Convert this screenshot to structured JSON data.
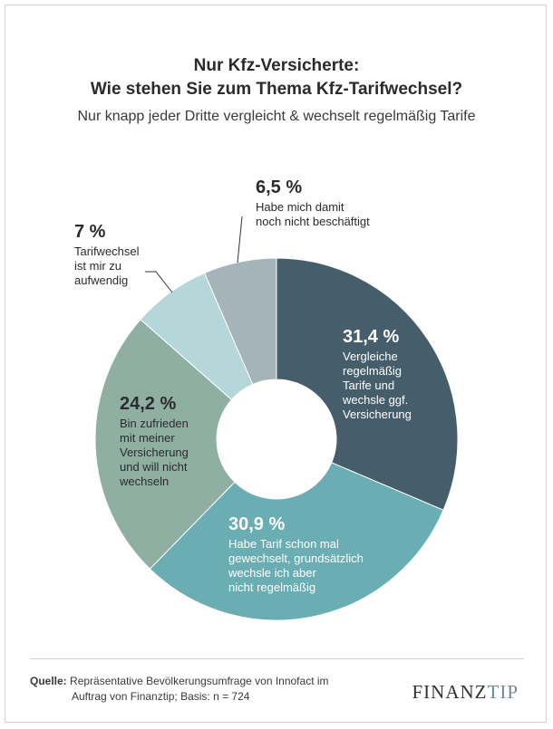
{
  "title_line1": "Nur Kfz-Versicherte:",
  "title_line2": "Wie stehen Sie zum Thema Kfz-Tarifwechsel?",
  "subtitle": "Nur knapp jeder Dritte vergleicht & wechselt regelmäßig Tarife",
  "chart_data": {
    "type": "donut",
    "title": "Nur Kfz-Versicherte: Wie stehen Sie zum Thema Kfz-Tarifwechsel?",
    "slices": [
      {
        "value": 31.4,
        "label": "31,4 %",
        "text": [
          "Vergleiche",
          "regelmäßig",
          "Tarife und",
          "wechsle ggf.",
          "Versicherung"
        ],
        "color": "#465d6c"
      },
      {
        "value": 30.9,
        "label": "30,9 %",
        "text": [
          "Habe Tarif schon mal",
          "gewechselt, grundsätzlich",
          "wechsle ich aber",
          "nicht regelmäßig"
        ],
        "color": "#6aadb3"
      },
      {
        "value": 24.2,
        "label": "24,2 %",
        "text": [
          "Bin zufrieden",
          "mit meiner",
          "Versicherung",
          "und will nicht",
          "wechseln"
        ],
        "color": "#8fafa3"
      },
      {
        "value": 7,
        "label": "7 %",
        "text": [
          "Tarifwechsel",
          "ist mir zu",
          "aufwendig"
        ],
        "color": "#b6d7da"
      },
      {
        "value": 6.5,
        "label": "6,5 %",
        "text": [
          "Habe mich damit",
          "noch nicht beschäftigt"
        ],
        "color": "#a4b4b8"
      }
    ]
  },
  "source": {
    "label": "Quelle:",
    "line1": "Repräsentative Bevölkerungsumfrage von Innofact im",
    "line2": "Auftrag von Finanztip; Basis: n = 724"
  },
  "logo": {
    "part1": "FINANZ",
    "part2": "TIP"
  }
}
